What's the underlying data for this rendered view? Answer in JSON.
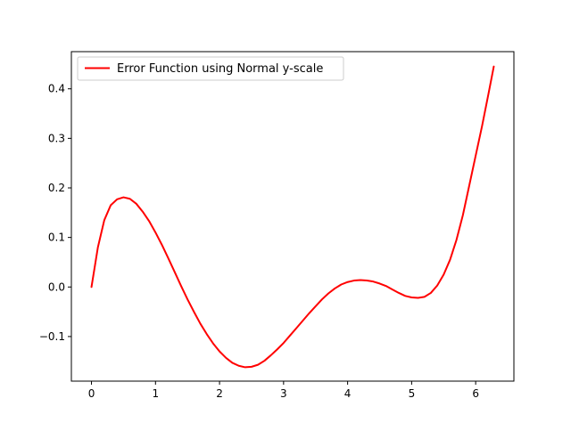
{
  "chart_data": {
    "type": "line",
    "title": "",
    "xlabel": "",
    "ylabel": "",
    "xlim": [
      -0.314,
      6.597
    ],
    "ylim": [
      -0.19,
      0.475
    ],
    "xticks": [
      0,
      1,
      2,
      3,
      4,
      5,
      6
    ],
    "xtick_labels": [
      "0",
      "1",
      "2",
      "3",
      "4",
      "5",
      "6"
    ],
    "yticks": [
      -0.1,
      0.0,
      0.1,
      0.2,
      0.3,
      0.4
    ],
    "ytick_labels": [
      "−0.1",
      "0.0",
      "0.1",
      "0.2",
      "0.3",
      "0.4"
    ],
    "grid": false,
    "legend": {
      "position": "upper-left"
    },
    "series": [
      {
        "name": "Error Function using Normal y-scale",
        "color": "#ff0000",
        "x": [
          0.0,
          0.1,
          0.2,
          0.3,
          0.4,
          0.5,
          0.6,
          0.7,
          0.8,
          0.9,
          1.0,
          1.1,
          1.2,
          1.3,
          1.4,
          1.5,
          1.6,
          1.7,
          1.8,
          1.9,
          2.0,
          2.1,
          2.2,
          2.3,
          2.4,
          2.5,
          2.6,
          2.7,
          2.8,
          2.9,
          3.0,
          3.1,
          3.2,
          3.3,
          3.4,
          3.5,
          3.6,
          3.7,
          3.8,
          3.9,
          4.0,
          4.1,
          4.2,
          4.3,
          4.4,
          4.5,
          4.6,
          4.7,
          4.8,
          4.9,
          5.0,
          5.1,
          5.2,
          5.3,
          5.4,
          5.5,
          5.6,
          5.7,
          5.8,
          5.9,
          6.0,
          6.1,
          6.2,
          6.283
        ],
        "y": [
          0.0,
          0.08,
          0.135,
          0.165,
          0.177,
          0.181,
          0.178,
          0.168,
          0.152,
          0.133,
          0.11,
          0.085,
          0.058,
          0.03,
          0.002,
          -0.025,
          -0.05,
          -0.074,
          -0.095,
          -0.114,
          -0.13,
          -0.143,
          -0.153,
          -0.159,
          -0.162,
          -0.161,
          -0.157,
          -0.149,
          -0.138,
          -0.126,
          -0.113,
          -0.098,
          -0.083,
          -0.068,
          -0.053,
          -0.039,
          -0.025,
          -0.013,
          -0.003,
          0.005,
          0.01,
          0.013,
          0.014,
          0.013,
          0.011,
          0.007,
          0.002,
          -0.005,
          -0.012,
          -0.018,
          -0.021,
          -0.022,
          -0.02,
          -0.012,
          0.003,
          0.025,
          0.055,
          0.095,
          0.145,
          0.205,
          0.265,
          0.325,
          0.39,
          0.445
        ]
      }
    ]
  }
}
